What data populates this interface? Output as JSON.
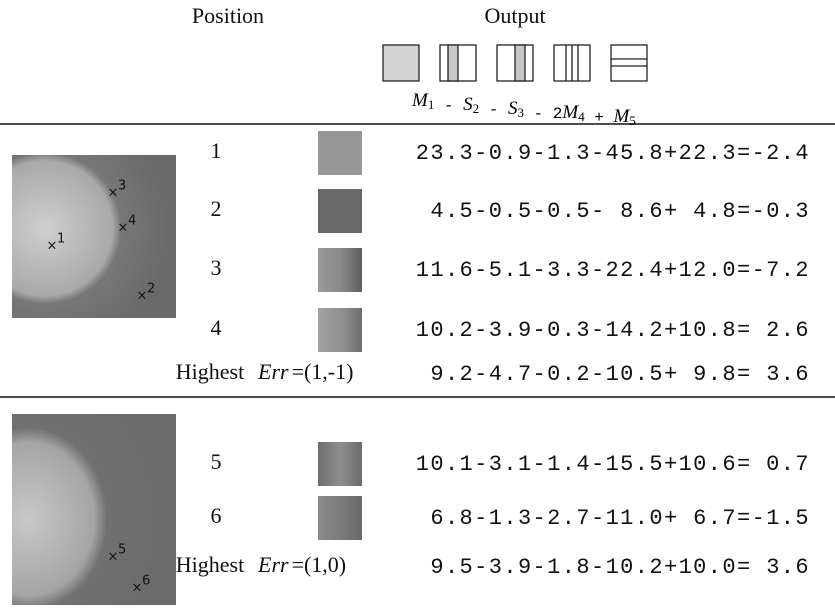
{
  "header": {
    "position": "Position",
    "output": "Output",
    "formula": [
      {
        "var": "M",
        "sub": "1"
      },
      {
        "op": " - "
      },
      {
        "var": "S",
        "sub": "2"
      },
      {
        "op": " - "
      },
      {
        "var": "S",
        "sub": "3"
      },
      {
        "op": " - 2"
      },
      {
        "var": "M",
        "sub": "4"
      },
      {
        "op": " + "
      },
      {
        "var": "M",
        "sub": "5"
      }
    ]
  },
  "groups": [
    {
      "markers": [
        "1",
        "2",
        "3",
        "4"
      ],
      "rows": [
        {
          "position": "1",
          "equation": "23.3-0.9-1.3-45.8+22.3=-2.4"
        },
        {
          "position": "2",
          "equation": "4.5-0.5-0.5- 8.6+ 4.8=-0.3"
        },
        {
          "position": "3",
          "equation": "11.6-5.1-3.3-22.4+12.0=-7.2"
        },
        {
          "position": "4",
          "equation": "10.2-3.9-0.3-14.2+10.8= 2.6"
        }
      ],
      "highest": {
        "label": "Highest",
        "err": "Err",
        "err_value": "=(1,-1)",
        "equation": "9.2-4.7-0.2-10.5+ 9.8= 3.6"
      }
    },
    {
      "markers": [
        "5",
        "6"
      ],
      "rows": [
        {
          "position": "5",
          "equation": "10.1-3.1-1.4-15.5+10.6= 0.7"
        },
        {
          "position": "6",
          "equation": "6.8-1.3-2.7-11.0+ 6.7=-1.5"
        }
      ],
      "highest": {
        "label": "Highest",
        "err": "Err",
        "err_value": "=(1,0)",
        "equation": "9.5-3.9-1.8-10.2+10.0= 3.6"
      }
    }
  ]
}
